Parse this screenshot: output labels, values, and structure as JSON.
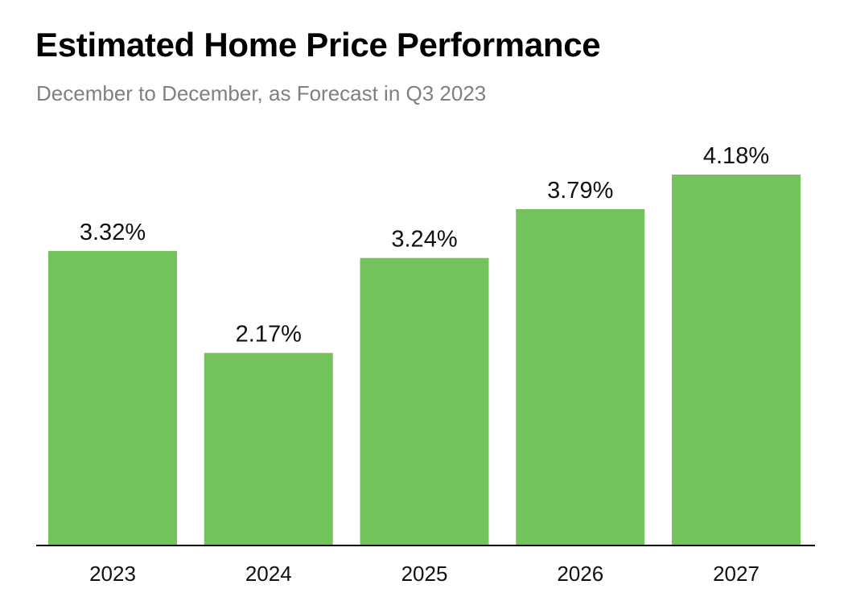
{
  "chart_data": {
    "type": "bar",
    "title": "Estimated Home Price Performance",
    "subtitle": "December to December, as Forecast in Q3 2023",
    "categories": [
      "2023",
      "2024",
      "2025",
      "2026",
      "2027"
    ],
    "values": [
      3.32,
      2.17,
      3.24,
      3.79,
      4.18
    ],
    "data_labels": [
      "3.32%",
      "2.17%",
      "3.24%",
      "3.79%",
      "4.18%"
    ],
    "ylim": [
      0,
      4.18
    ],
    "grid": false,
    "legend": "none",
    "bar_color": "#74c25c",
    "axis_color": "#000000"
  }
}
